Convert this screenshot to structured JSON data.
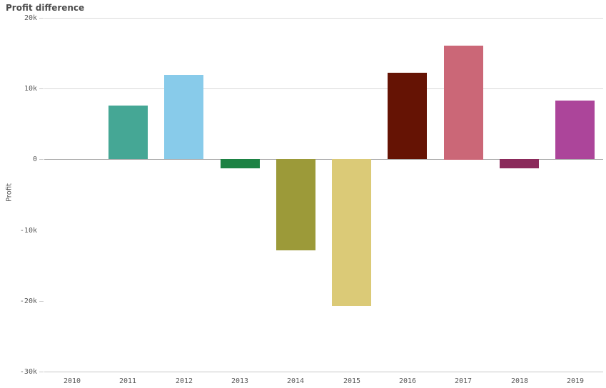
{
  "title": "Profit difference",
  "chart_data": {
    "type": "bar",
    "title": "Profit difference",
    "xlabel": "",
    "ylabel": "Profit",
    "categories": [
      "2010",
      "2011",
      "2012",
      "2013",
      "2014",
      "2015",
      "2016",
      "2017",
      "2018",
      "2019"
    ],
    "values": [
      0,
      7600,
      11900,
      -1300,
      -12900,
      -20800,
      12200,
      16100,
      -1300,
      8300
    ],
    "bar_colors": [
      null,
      "#45a795",
      "#88cbea",
      "#1d8244",
      "#9c9a39",
      "#dbca77",
      "#651304",
      "#cb6777",
      "#8b2a5b",
      "#ac459a"
    ],
    "ylim": [
      -30000,
      20000
    ],
    "grid": "horizontal",
    "legend": "none",
    "yticks": [
      {
        "label": "20k",
        "value": 20000,
        "gridline": true,
        "tick": true
      },
      {
        "label": "10k",
        "value": 10000,
        "gridline": true,
        "tick": true
      },
      {
        "label": "0",
        "value": 0,
        "gridline": true,
        "tick": true
      },
      {
        "label": "-10k",
        "value": -10000,
        "gridline": false,
        "tick": false
      },
      {
        "label": "-20k",
        "value": -20000,
        "gridline": false,
        "tick": true
      },
      {
        "label": "-30k",
        "value": -30000,
        "gridline": false,
        "tick": true
      }
    ],
    "colors": {
      "title_text": "#4c4c4c",
      "axis_text": "#595959",
      "gridline": "#dadada",
      "zero_line": "#a9a9a9",
      "baseline": "#c6c6c6"
    }
  }
}
